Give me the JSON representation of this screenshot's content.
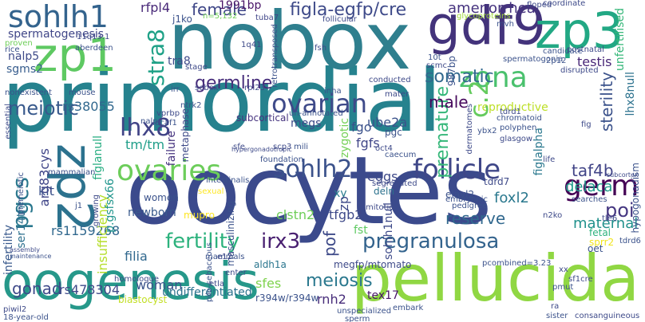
{
  "words": [
    {
      "text": "primordial",
      "color": "#2a8a8a"
    },
    {
      "text": "oocytes",
      "color": "#3b4a8c"
    },
    {
      "text": "nobox",
      "color": "#2f7f8e"
    },
    {
      "text": "oogenesis",
      "color": "#26988a"
    },
    {
      "text": "pellucida",
      "color": "#90d743"
    },
    {
      "text": "gdf9",
      "color": "#43337b"
    },
    {
      "text": "zp3",
      "color": "#22a884"
    },
    {
      "text": "zp1",
      "color": "#5ec962"
    },
    {
      "text": "zp2",
      "color": "#2c728e"
    },
    {
      "text": "sohlh1",
      "color": "#33638d"
    },
    {
      "text": "figla-egfp/cre",
      "color": "#3e4a89"
    },
    {
      "text": "follicle",
      "color": "#3f4788"
    },
    {
      "text": "ovaries",
      "color": "#6ccd5a"
    },
    {
      "text": "germ",
      "color": "#440154"
    },
    {
      "text": "ovarian",
      "color": "#3e4a89"
    },
    {
      "text": "sohlh2",
      "color": "#3b528b"
    },
    {
      "text": "lhx8",
      "color": "#414487"
    },
    {
      "text": "zona",
      "color": "#4ac16d"
    },
    {
      "text": "germline",
      "color": "#472d7b"
    },
    {
      "text": "stra8",
      "color": "#1fa187"
    },
    {
      "text": "fertility",
      "color": "#2db27d"
    },
    {
      "text": "irx3",
      "color": "#481f70"
    },
    {
      "text": "pregranulosa",
      "color": "#33638d"
    },
    {
      "text": "gonad",
      "color": "#3e4989"
    },
    {
      "text": "pgcs",
      "color": "#2a788e"
    },
    {
      "text": "taf4b",
      "color": "#414487"
    },
    {
      "text": "poi",
      "color": "#453781"
    },
    {
      "text": "meiotic",
      "color": "#38598c"
    },
    {
      "text": "meiosis",
      "color": "#2a788e"
    },
    {
      "text": "woman",
      "color": "#3b528b"
    },
    {
      "text": "somatic",
      "color": "#31688e"
    },
    {
      "text": "female",
      "color": "#3f4788"
    },
    {
      "text": "1991bp",
      "color": "#481467"
    },
    {
      "text": "amenorrhea",
      "color": "#46337f"
    },
    {
      "text": "premature",
      "color": "#35b779"
    },
    {
      "text": "reproductive",
      "color": "#bddf26"
    },
    {
      "text": "male",
      "color": "#46085c"
    },
    {
      "text": "sterility",
      "color": "#3b528b"
    },
    {
      "text": "c.2",
      "color": "#65cb5e"
    },
    {
      "text": "reserve",
      "color": "#31688e"
    },
    {
      "text": "maternal",
      "color": "#21918c"
    },
    {
      "text": "delaca",
      "color": "#1e9b8a"
    },
    {
      "text": "fgfs",
      "color": "#404688"
    },
    {
      "text": "fgo",
      "color": "#3b528b"
    },
    {
      "text": "foxl2",
      "color": "#2a788e"
    },
    {
      "text": "spermatogenesis",
      "color": "#404688"
    },
    {
      "text": "rfpl4",
      "color": "#482878"
    },
    {
      "text": "newborn",
      "color": "#38598c"
    },
    {
      "text": "rs1159268",
      "color": "#31688e"
    },
    {
      "text": "rs478304",
      "color": "#3e4a89"
    },
    {
      "text": "kit",
      "color": "#3b528b"
    },
    {
      "text": "xy",
      "color": "#287c8e"
    },
    {
      "text": "nalp5",
      "color": "#3e4a89"
    },
    {
      "text": "sgms2",
      "color": "#365c8d"
    },
    {
      "text": "tra8",
      "color": "#3e4a89"
    },
    {
      "text": "testis",
      "color": "#482677"
    },
    {
      "text": "rs38055",
      "color": "#31688e"
    },
    {
      "text": "ube2a",
      "color": "#3b528b"
    },
    {
      "text": "eggs",
      "color": "#3e4989"
    },
    {
      "text": "deln",
      "color": "#2c728e"
    },
    {
      "text": "clstn2",
      "color": "#6ece58"
    },
    {
      "text": "tfgb2",
      "color": "#3e4989"
    },
    {
      "text": "fst",
      "color": "#5ec962"
    },
    {
      "text": "sfes",
      "color": "#7fd34e"
    },
    {
      "text": "tex17",
      "color": "#481467"
    },
    {
      "text": "rnh2",
      "color": "#472c7a"
    },
    {
      "text": "undifferentiated",
      "color": "#2c728e"
    },
    {
      "text": "r394w/r394w",
      "color": "#3b528b"
    },
    {
      "text": "insufficiency",
      "color": "#b5de2b"
    },
    {
      "text": "arg83cys",
      "color": "#404688"
    },
    {
      "text": "filia",
      "color": "#31688e"
    },
    {
      "text": "tm/tm",
      "color": "#1f9e89"
    },
    {
      "text": "failure",
      "color": "#46337f"
    },
    {
      "text": "figlanull",
      "color": "#27ad81"
    },
    {
      "text": "zygotic",
      "color": "#73d056"
    },
    {
      "text": "pof",
      "color": "#3e4a89"
    },
    {
      "text": "zp",
      "color": "#3e4989"
    },
    {
      "text": "figlalpha",
      "color": "#2a788e"
    },
    {
      "text": "lhx8null",
      "color": "#2c728e"
    },
    {
      "text": "sohlh1null",
      "color": "#3e4a89"
    },
    {
      "text": "aldh1a",
      "color": "#2a768e"
    },
    {
      "text": "megfp/mtomato",
      "color": "#3e4a89"
    },
    {
      "text": "mupro",
      "color": "#fde725"
    },
    {
      "text": "women",
      "color": "#3b528b"
    },
    {
      "text": "infertility",
      "color": "#38598c"
    },
    {
      "text": "ser14thr",
      "color": "#2d708e"
    },
    {
      "text": "p.gsfsx66",
      "color": "#1f948c"
    },
    {
      "text": "elavl2",
      "color": "#3b528b"
    },
    {
      "text": "tdrd7",
      "color": "#3e4a89"
    },
    {
      "text": "masculinizing",
      "color": "#3b528b"
    },
    {
      "text": "megs",
      "color": "#3e4a89"
    },
    {
      "text": "pgc",
      "color": "#3b528b"
    },
    {
      "text": "metaphase",
      "color": "#3e4a89"
    },
    {
      "text": "subcortical",
      "color": "#46337f"
    },
    {
      "text": "n=5,132",
      "color": "#6ece58"
    },
    {
      "text": "j1ko",
      "color": "#3b528b"
    },
    {
      "text": "tuba7",
      "color": "#404688"
    },
    {
      "text": "floped",
      "color": "#3e4a89"
    },
    {
      "text": "fetal",
      "color": "#2db27d"
    },
    {
      "text": "sprr2",
      "color": "#f1e51d"
    },
    {
      "text": "tdrd6",
      "color": "#3b528b"
    },
    {
      "text": "tle6",
      "color": "#3e4989"
    },
    {
      "text": "searches",
      "color": "#3b528b"
    },
    {
      "text": "biastocyst",
      "color": "#c2df23"
    },
    {
      "text": "serum",
      "color": "#3e4a89"
    },
    {
      "text": "oet",
      "color": "#3b528b"
    },
    {
      "text": "unfertilised",
      "color": "#35b779"
    },
    {
      "text": "hypogonadism",
      "color": "#3b528b"
    },
    {
      "text": "subcortex",
      "color": "#3e4a89"
    },
    {
      "text": "mammalian",
      "color": "#3b528b"
    },
    {
      "text": "essential",
      "color": "#3e4a89"
    },
    {
      "text": "intestinalis",
      "color": "#3b528b"
    },
    {
      "text": "homologue",
      "color": "#3e4a89"
    },
    {
      "text": "mammals",
      "color": "#3b528b"
    },
    {
      "text": "embryo",
      "color": "#3e4a89"
    },
    {
      "text": "embryonic",
      "color": "#3b528b"
    },
    {
      "text": "mitotic",
      "color": "#3e4a89"
    },
    {
      "text": "pedigree",
      "color": "#3b528b"
    },
    {
      "text": "segregated",
      "color": "#3e4a89"
    },
    {
      "text": "foundation",
      "color": "#3b528b"
    },
    {
      "text": "glasgow",
      "color": "#3e4a89"
    },
    {
      "text": "polyphen",
      "color": "#3b528b"
    },
    {
      "text": "life",
      "color": "#3e4a89"
    },
    {
      "text": "ybx2",
      "color": "#3b528b"
    },
    {
      "text": "fig",
      "color": "#3e4a89"
    },
    {
      "text": "ovulation",
      "color": "#3b528b"
    },
    {
      "text": "postnatal",
      "color": "#3e4a89"
    },
    {
      "text": "candidate",
      "color": "#3b528b"
    },
    {
      "text": "coordinate",
      "color": "#3e4a89"
    },
    {
      "text": "mvh",
      "color": "#3b528b"
    },
    {
      "text": "fsh",
      "color": "#3e4a89"
    },
    {
      "text": "inha",
      "color": "#3b528b"
    },
    {
      "text": "stage",
      "color": "#3e4a89"
    },
    {
      "text": "aberdeen",
      "color": "#3b528b"
    },
    {
      "text": "proven",
      "color": "#6ece58"
    },
    {
      "text": "rice",
      "color": "#3b528b"
    },
    {
      "text": "11q13.1",
      "color": "#3e4a89"
    },
    {
      "text": "glycoproteins",
      "color": "#a0da39"
    },
    {
      "text": "follicular",
      "color": "#3e4a89"
    },
    {
      "text": "retrotransposed",
      "color": "#3b528b"
    },
    {
      "text": "conducted",
      "color": "#3e4a89"
    },
    {
      "text": "un-annotated",
      "color": "#3b528b"
    },
    {
      "text": "mater",
      "color": "#3e4a89"
    },
    {
      "text": "pcombined=3.23",
      "color": "#3b528b"
    },
    {
      "text": "consanguineous",
      "color": "#3e4a89"
    },
    {
      "text": "sister",
      "color": "#3b528b"
    },
    {
      "text": "piwil2",
      "color": "#3e4a89"
    },
    {
      "text": "18-year-old",
      "color": "#3b528b"
    },
    {
      "text": "n2ko",
      "color": "#3e4a89"
    },
    {
      "text": "dcaf1",
      "color": "#3b528b"
    },
    {
      "text": "vprbp",
      "color": "#3e4a89"
    },
    {
      "text": "nalp",
      "color": "#3b528b"
    },
    {
      "text": "scp3",
      "color": "#3e4a89"
    },
    {
      "text": "mili",
      "color": "#3b528b"
    },
    {
      "text": "sfe",
      "color": "#3e4a89"
    },
    {
      "text": "irr",
      "color": "#3b528b"
    },
    {
      "text": "rpl23",
      "color": "#3e4a89"
    },
    {
      "text": "ntrk2",
      "color": "#3b528b"
    },
    {
      "text": "1q41",
      "color": "#3e4a89"
    },
    {
      "text": "2p12",
      "color": "#3b528b"
    },
    {
      "text": "sebox",
      "color": "#3e4a89"
    },
    {
      "text": "987bp",
      "color": "#3b528b"
    },
    {
      "text": "sf1cre",
      "color": "#3e4a89"
    },
    {
      "text": "pmut",
      "color": "#3b528b"
    },
    {
      "text": "ra",
      "color": "#3e4a89"
    },
    {
      "text": "unspecialized",
      "color": "#3b528b"
    },
    {
      "text": "enter",
      "color": "#3e4a89"
    },
    {
      "text": "sperm",
      "color": "#3b528b"
    },
    {
      "text": "e12",
      "color": "#3e4a89"
    },
    {
      "text": "maintenance",
      "color": "#3b528b"
    },
    {
      "text": "assembly",
      "color": "#3e4a89"
    },
    {
      "text": "nonexistent",
      "color": "#3b528b"
    },
    {
      "text": "oct4",
      "color": "#3e4a89"
    },
    {
      "text": "mouse",
      "color": "#3b528b"
    },
    {
      "text": "hypergonadotropic",
      "color": "#3e4a89"
    },
    {
      "text": "caecum",
      "color": "#3b528b"
    },
    {
      "text": "disrupted",
      "color": "#3e4a89"
    },
    {
      "text": "spermatogonia",
      "color": "#3b528b"
    },
    {
      "text": "scmc",
      "color": "#3e4a89"
    },
    {
      "text": "10t",
      "color": "#3b528b"
    },
    {
      "text": "growing",
      "color": "#3e4a89"
    },
    {
      "text": "sexual",
      "color": "#fde725"
    },
    {
      "text": "pilo-sebaceous",
      "color": "#3b528b"
    },
    {
      "text": "xx",
      "color": "#3e4a89"
    },
    {
      "text": "j1",
      "color": "#3b528b"
    },
    {
      "text": "dermatomes",
      "color": "#3e4a89"
    },
    {
      "text": "chromatoid",
      "color": "#3b528b"
    },
    {
      "text": "tdrd1",
      "color": "#3e4a89"
    },
    {
      "text": "premeiotic",
      "color": "#3b528b"
    },
    {
      "text": "mammal",
      "color": "#3e4a89"
    },
    {
      "text": "embark",
      "color": "#3b528b"
    },
    {
      "text": "etla",
      "color": "#3e4a89"
    }
  ]
}
